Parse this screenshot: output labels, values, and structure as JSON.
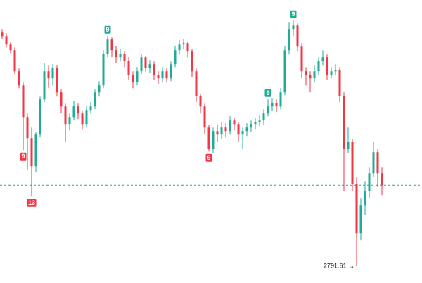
{
  "chart_data": {
    "type": "candlestick",
    "up_color": "#22ab94",
    "down_color": "#f23645",
    "ylim": [
      2779.61,
      2980.61
    ],
    "open": [
      2957.5,
      2955,
      2949,
      2945,
      2930,
      2920,
      2897.5,
      2882.5,
      2862.5,
      2885,
      2910,
      2930,
      2925,
      2932.5,
      2915,
      2905,
      2892.5,
      2897.5,
      2905,
      2900,
      2892.5,
      2902.5,
      2905,
      2915,
      2920,
      2942.5,
      2952.5,
      2945,
      2940,
      2942.5,
      2937.5,
      2927.5,
      2922.5,
      2930,
      2940,
      2932.5,
      2935,
      2927.5,
      2925,
      2930,
      2925,
      2935,
      2945,
      2949,
      2950,
      2944,
      2930,
      2912.5,
      2905,
      2890,
      2875,
      2887.5,
      2885,
      2890,
      2887.5,
      2895,
      2892.5,
      2885,
      2887.5,
      2890,
      2892.5,
      2894,
      2895,
      2900,
      2905,
      2907.5,
      2905,
      2915,
      2945,
      2960,
      2962.5,
      2947.5,
      2930,
      2927.5,
      2925,
      2930,
      2937.5,
      2940,
      2927.5,
      2930,
      2931,
      2912.5,
      2875,
      2880,
      2850,
      2815,
      2835,
      2845,
      2857.5,
      2872.5,
      2857.5
    ],
    "high": [
      2960,
      2957,
      2951,
      2947,
      2932,
      2922,
      2900,
      2890,
      2887,
      2912,
      2936,
      2934,
      2935,
      2934,
      2917,
      2907,
      2900,
      2909,
      2907,
      2902,
      2905,
      2908,
      2917,
      2923,
      2945,
      2955,
      2954,
      2948,
      2946,
      2944,
      2940,
      2930,
      2933,
      2942,
      2941,
      2938,
      2937,
      2930,
      2933,
      2932,
      2937,
      2948,
      2952,
      2953,
      2951,
      2946,
      2932,
      2914,
      2907,
      2892,
      2890,
      2892,
      2894,
      2893,
      2898,
      2897,
      2894,
      2890,
      2893,
      2895,
      2897,
      2899,
      2903,
      2910,
      2911,
      2910,
      2918,
      2948,
      2965,
      2966,
      2964,
      2950,
      2933,
      2930,
      2934,
      2940,
      2945,
      2942,
      2933,
      2935,
      2933,
      2915,
      2890,
      2882,
      2855,
      2840,
      2852,
      2862,
      2880,
      2875,
      2862
    ],
    "low": [
      2953,
      2947,
      2943,
      2928,
      2918,
      2874,
      2860,
      2841,
      2858,
      2883,
      2908,
      2918,
      2920,
      2912,
      2900,
      2880,
      2888,
      2895,
      2896,
      2889,
      2890,
      2900,
      2903,
      2912,
      2918,
      2940,
      2940,
      2936,
      2937,
      2933,
      2924,
      2918,
      2920,
      2928,
      2930,
      2929,
      2924,
      2921,
      2922,
      2922,
      2923,
      2933,
      2942,
      2946,
      2940,
      2926,
      2908,
      2900,
      2885,
      2873,
      2872,
      2880,
      2882,
      2883,
      2885,
      2888,
      2880,
      2875,
      2884,
      2887,
      2889,
      2891,
      2892,
      2898,
      2902,
      2901,
      2903,
      2913,
      2942,
      2955,
      2944,
      2925,
      2920,
      2915,
      2922,
      2927,
      2934,
      2924,
      2925,
      2927,
      2908,
      2845,
      2872,
      2845,
      2791.61,
      2810,
      2828,
      2840,
      2855,
      2848,
      2842
    ],
    "close": [
      2955,
      2949,
      2945,
      2930,
      2920,
      2897.5,
      2882.5,
      2862.5,
      2885,
      2910,
      2930,
      2925,
      2932.5,
      2915,
      2905,
      2892.5,
      2897.5,
      2905,
      2900,
      2892.5,
      2902.5,
      2905,
      2915,
      2920,
      2942.5,
      2952.5,
      2945,
      2940,
      2942.5,
      2937.5,
      2927.5,
      2922.5,
      2930,
      2940,
      2932.5,
      2935,
      2927.5,
      2925,
      2930,
      2925,
      2935,
      2945,
      2949,
      2950,
      2944,
      2930,
      2912.5,
      2905,
      2890,
      2875,
      2887.5,
      2885,
      2890,
      2887.5,
      2895,
      2892.5,
      2885,
      2887.5,
      2890,
      2892.5,
      2894,
      2895,
      2900,
      2905,
      2907.5,
      2905,
      2915,
      2945,
      2960,
      2962.5,
      2947.5,
      2930,
      2927.5,
      2925,
      2930,
      2937.5,
      2940,
      2927.5,
      2930,
      2931,
      2912.5,
      2875,
      2880,
      2850,
      2815,
      2835,
      2845,
      2857.5,
      2872.5,
      2857.5,
      2849
    ],
    "signals": [
      {
        "candle": 5,
        "text": "9",
        "side": "below"
      },
      {
        "candle": 7,
        "text": "13",
        "side": "below"
      },
      {
        "candle": 25,
        "text": "9",
        "side": "above"
      },
      {
        "candle": 49,
        "text": "9",
        "side": "below"
      },
      {
        "candle": 63,
        "text": "9",
        "side": "above"
      },
      {
        "candle": 69,
        "text": "9",
        "side": "above"
      }
    ],
    "last_price": 2849,
    "last_price_color": "#22ab94",
    "low_label": {
      "value": 2791.61,
      "label": "2791.61 →"
    }
  }
}
